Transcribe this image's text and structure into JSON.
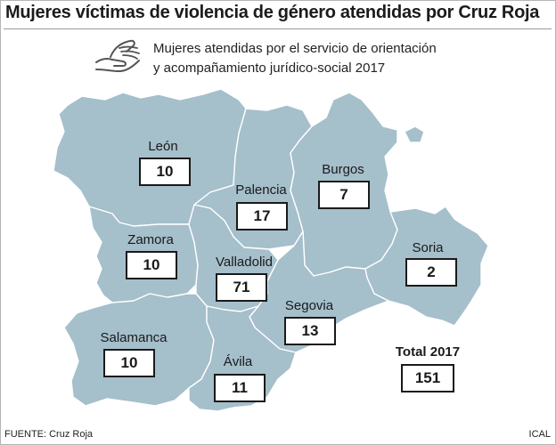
{
  "title": "Mujeres víctimas de violencia de género atendidas por Cruz Roja",
  "subtitle_line1": "Mujeres atendidas por el servicio de orientación",
  "subtitle_line2": "y acompañamiento jurídico-social 2017",
  "map_fill": "#a5bfcb",
  "border_color": "#ffffff",
  "provinces": [
    {
      "name": "León",
      "value": "10"
    },
    {
      "name": "Palencia",
      "value": "17"
    },
    {
      "name": "Burgos",
      "value": "7"
    },
    {
      "name": "Zamora",
      "value": "10"
    },
    {
      "name": "Valladolid",
      "value": "71"
    },
    {
      "name": "Soria",
      "value": "2"
    },
    {
      "name": "Segovia",
      "value": "13"
    },
    {
      "name": "Salamanca",
      "value": "10"
    },
    {
      "name": "Ávila",
      "value": "11"
    }
  ],
  "total": {
    "label": "Total 2017",
    "value": "151"
  },
  "source": "FUENTE: Cruz Roja",
  "agency": "ICAL"
}
